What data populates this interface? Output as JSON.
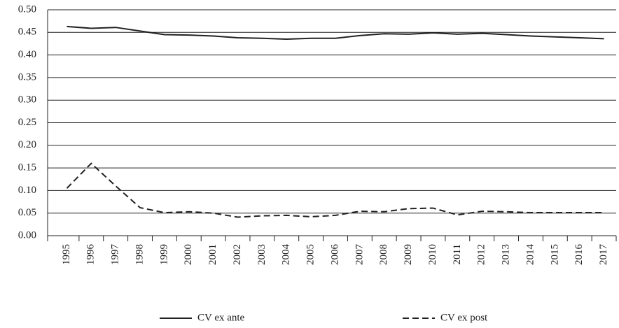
{
  "chart_data": {
    "type": "line",
    "categories": [
      "1995",
      "1996",
      "1997",
      "1998",
      "1999",
      "2000",
      "2001",
      "2002",
      "2003",
      "2004",
      "2005",
      "2006",
      "2007",
      "2008",
      "2009",
      "2010",
      "2011",
      "2012",
      "2013",
      "2014",
      "2015",
      "2016",
      "2017"
    ],
    "series": [
      {
        "name": "CV ex ante",
        "color": "#222222",
        "style": "solid",
        "values": [
          0.463,
          0.459,
          0.461,
          0.453,
          0.445,
          0.444,
          0.442,
          0.438,
          0.437,
          0.435,
          0.437,
          0.437,
          0.443,
          0.447,
          0.446,
          0.449,
          0.446,
          0.448,
          0.445,
          0.442,
          0.44,
          0.438,
          0.436
        ]
      },
      {
        "name": "CV ex post",
        "color": "#222222",
        "style": "dashed",
        "values": [
          0.105,
          0.16,
          0.11,
          0.062,
          0.051,
          0.053,
          0.05,
          0.041,
          0.044,
          0.045,
          0.042,
          0.045,
          0.054,
          0.053,
          0.06,
          0.061,
          0.046,
          0.054,
          0.053,
          0.051,
          0.051,
          0.051,
          0.051
        ]
      }
    ],
    "ylim": [
      0,
      0.5
    ],
    "yticks": [
      {
        "value": 0,
        "label": "0.00"
      },
      {
        "value": 0.05,
        "label": "0.05"
      },
      {
        "value": 0.1,
        "label": "0.10"
      },
      {
        "value": 0.15,
        "label": "0.15"
      },
      {
        "value": 0.2,
        "label": "0.20"
      },
      {
        "value": 0.25,
        "label": "0.25"
      },
      {
        "value": 0.3,
        "label": "0.30"
      },
      {
        "value": 0.35,
        "label": "0.35"
      },
      {
        "value": 0.4,
        "label": "0.40"
      },
      {
        "value": 0.45,
        "label": "0.45"
      },
      {
        "value": 0.5,
        "label": "0.50"
      }
    ],
    "grid": true,
    "legend": "bottom"
  }
}
